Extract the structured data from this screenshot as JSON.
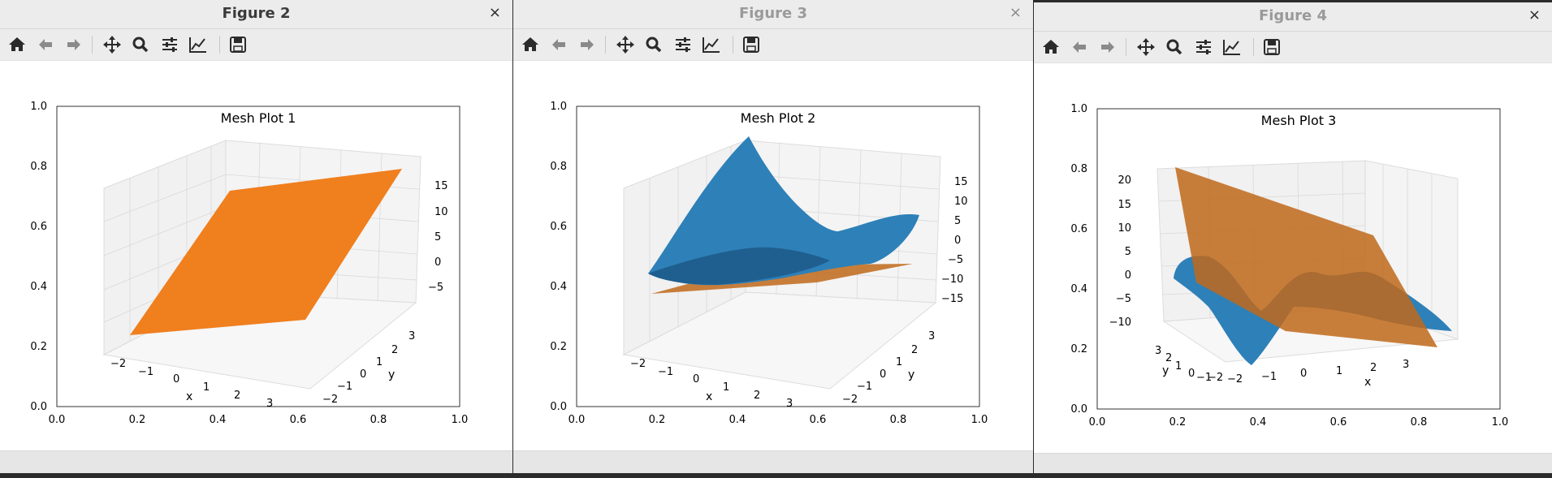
{
  "colors": {
    "orange": "#f07f1e",
    "blue": "#2e80b8",
    "blue_dark": "#1f5f8f",
    "brown": "#c0691a"
  },
  "toolbar_icons": [
    "home-icon",
    "back-arrow-icon",
    "forward-arrow-icon",
    "pan-move-icon",
    "zoom-magnifier-icon",
    "configure-subplots-icon",
    "edit-axis-curve-icon",
    "save-floppy-icon"
  ],
  "windows": [
    {
      "title": "Figure 2",
      "close": "×",
      "plot_title": "Mesh Plot 1",
      "y2d_ticks": [
        "1.0",
        "0.8",
        "0.6",
        "0.4",
        "0.2",
        "0.0"
      ],
      "x2d_ticks": [
        "0.0",
        "0.2",
        "0.4",
        "0.6",
        "0.8",
        "1.0"
      ],
      "z_ticks": [
        "15",
        "10",
        "5",
        "0",
        "−5"
      ],
      "x3d_ticks": [
        "−2",
        "−1",
        "0",
        "1",
        "2",
        "3"
      ],
      "y3d_ticks": [
        "3",
        "2",
        "1",
        "0",
        "−1",
        "−2"
      ],
      "xlabel": "x",
      "ylabel": "y"
    },
    {
      "title": "Figure 3",
      "close": "×",
      "plot_title": "Mesh Plot 2",
      "y2d_ticks": [
        "1.0",
        "0.8",
        "0.6",
        "0.4",
        "0.2",
        "0.0"
      ],
      "x2d_ticks": [
        "0.0",
        "0.2",
        "0.4",
        "0.6",
        "0.8",
        "1.0"
      ],
      "z_ticks": [
        "15",
        "10",
        "5",
        "0",
        "−5",
        "−10",
        "−15"
      ],
      "x3d_ticks": [
        "−2",
        "−1",
        "0",
        "1",
        "2",
        "3"
      ],
      "y3d_ticks": [
        "3",
        "2",
        "1",
        "0",
        "−1",
        "−2"
      ],
      "xlabel": "x",
      "ylabel": "y"
    },
    {
      "title": "Figure 4",
      "close": "×",
      "plot_title": "Mesh Plot 3",
      "y2d_ticks": [
        "1.0",
        "0.8",
        "0.6",
        "0.4",
        "0.2",
        "0.0"
      ],
      "x2d_ticks": [
        "0.0",
        "0.2",
        "0.4",
        "0.6",
        "0.8",
        "1.0"
      ],
      "z_ticks": [
        "20",
        "15",
        "10",
        "5",
        "0",
        "−5",
        "−10"
      ],
      "x3d_ticks": [
        "−2",
        "−1",
        "0",
        "1",
        "2",
        "3"
      ],
      "y3d_ticks": [
        "3",
        "2",
        "1",
        "0",
        "−1",
        "−2"
      ],
      "xlabel": "x",
      "ylabel": "y"
    }
  ]
}
